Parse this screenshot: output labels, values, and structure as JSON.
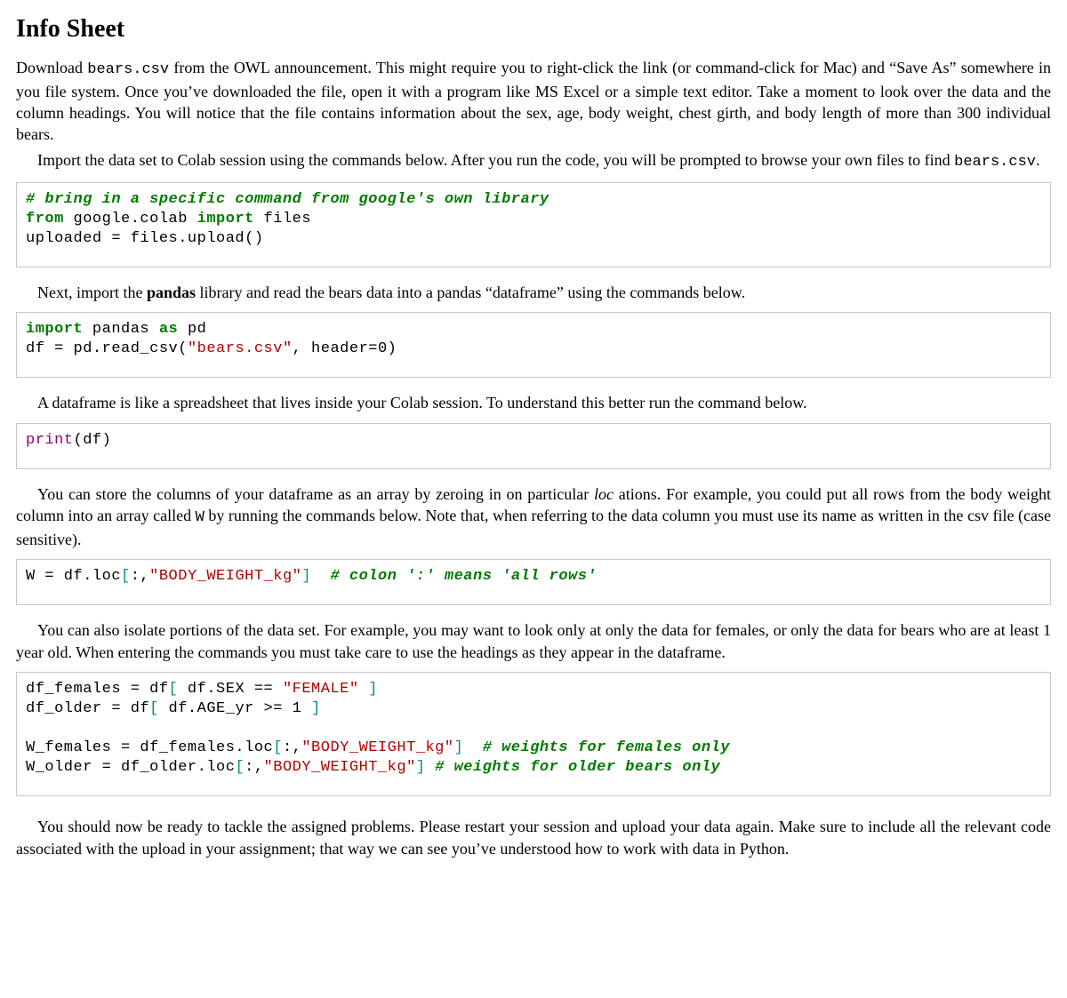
{
  "title": "Info Sheet",
  "p1a": "Download ",
  "p1_tt1": "bears.csv",
  "p1b": " from the OWL announcement. This might require you to right-click the link (or command-click for Mac) and “Save As” somewhere in you file system. Once you’ve downloaded the file, open it with a program like MS Excel or a simple text editor. Take a moment to look over the data and the column headings. You will notice that the file contains information about the sex, age, body weight, chest girth, and body length of more than 300 individual bears.",
  "p2a": "Import the data set to Colab session using the commands below. After you run the code, you will be prompted to browse your own files to find ",
  "p2_tt1": "bears.csv",
  "p2b": ".",
  "code1": {
    "c1": "# bring in a specific command from google's own library",
    "l2a": "from",
    "l2b": " google.colab ",
    "l2c": "import",
    "l2d": " files",
    "l3": "uploaded = files.upload()"
  },
  "p3a": "Next, import the ",
  "p3_b1": "pandas",
  "p3b": " library and read the bears data into a pandas “dataframe” using the commands below.",
  "code2": {
    "l1a": "import",
    "l1b": " pandas ",
    "l1c": "as",
    "l1d": " pd",
    "l2a": "df = pd.read_csv(",
    "l2b": "\"bears.csv\"",
    "l2c": ", header=0)"
  },
  "p4": "A dataframe is like a spreadsheet that lives inside your Colab session. To understand this better run the command below.",
  "code3": {
    "l1a": "print",
    "l1b": "(df)"
  },
  "p5a": "You can store the columns of your dataframe as an array by zeroing in on particular ",
  "p5_i1": "loc",
  "p5b": " ations. For example, you could put all rows from the body weight column into an array called ",
  "p5_tt1": "W",
  "p5c": " by running the commands below. Note that, when referring to the data column you must use its name as written in the csv file (case sensitive).",
  "code4": {
    "l1a": "W = df.loc",
    "l1b": "[",
    "l1c": ":,",
    "l1d": "\"BODY_WEIGHT_kg\"",
    "l1e": "]",
    "l1f": "  ",
    "l1g": "# colon ':' means 'all rows'"
  },
  "p6": "You can also isolate portions of the data set. For example, you may want to look only at only the data for females, or only the data for bears who are at least 1 year old. When entering the commands you must take care to use the headings as they appear in the dataframe.",
  "code5": {
    "l1a": "df_females = df",
    "l1b": "[",
    "l1c": " df.SEX == ",
    "l1d": "\"FEMALE\"",
    "l1e": " ",
    "l1f": "]",
    "l2a": "df_older = df",
    "l2b": "[",
    "l2c": " df.AGE_yr >= 1 ",
    "l2d": "]",
    "l3a": "W_females = df_females.loc",
    "l3b": "[",
    "l3c": ":,",
    "l3d": "\"BODY_WEIGHT_kg\"",
    "l3e": "]",
    "l3f": "  ",
    "l3g": "# weights for females only",
    "l4a": "W_older = df_older.loc",
    "l4b": "[",
    "l4c": ":,",
    "l4d": "\"BODY_WEIGHT_kg\"",
    "l4e": "]",
    "l4f": " ",
    "l4g": "# weights for older bears only"
  },
  "p7": "You should now be ready to tackle the assigned problems. Please restart your session and upload your data again. Make sure to include all the relevant code associated with the upload in your assignment; that way we can see you’ve understood how to work with data in Python."
}
